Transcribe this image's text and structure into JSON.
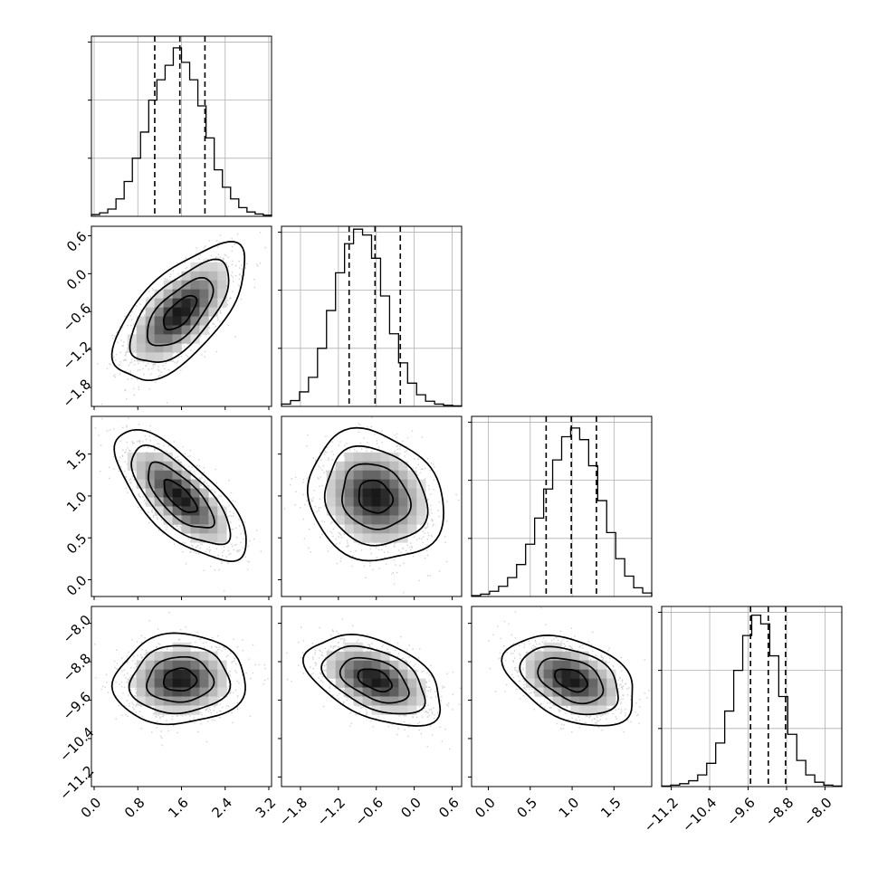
{
  "chart_data": {
    "type": "corner",
    "parameters": [
      {
        "xticks": [
          "0.0",
          "0.8",
          "1.6",
          "2.4",
          "3.2"
        ],
        "tick_values": [
          0.0,
          0.8,
          1.6,
          2.4,
          3.2
        ],
        "range": [
          -0.05,
          3.25
        ],
        "hist_edges": [
          -0.05,
          3.25
        ],
        "hist_counts": [
          6,
          12,
          25,
          60,
          120,
          200,
          290,
          400,
          470,
          520,
          580,
          530,
          470,
          380,
          270,
          160,
          100,
          60,
          30,
          15,
          8,
          4
        ],
        "hist_max": 620,
        "quantiles": [
          1.11,
          1.57,
          2.03
        ]
      },
      {
        "ticks": [
          "-1.8",
          "-1.2",
          "-0.6",
          "0.0",
          "0.6"
        ],
        "tick_values": [
          -1.8,
          -1.2,
          -0.6,
          0.0,
          0.6
        ],
        "range": [
          -2.1,
          0.75
        ],
        "hist_counts": [
          8,
          20,
          50,
          100,
          200,
          330,
          460,
          560,
          610,
          590,
          510,
          380,
          250,
          150,
          80,
          40,
          18,
          8,
          4,
          2
        ],
        "hist_max": 620,
        "quantiles": [
          -1.03,
          -0.62,
          -0.22
        ]
      },
      {
        "ticks": [
          "0.0",
          "0.5",
          "1.0",
          "1.5"
        ],
        "tick_values": [
          0.0,
          0.5,
          1.0,
          1.5
        ],
        "range": [
          -0.2,
          1.95
        ],
        "hist_counts": [
          3,
          8,
          18,
          35,
          65,
          110,
          180,
          270,
          370,
          470,
          550,
          580,
          540,
          450,
          330,
          220,
          130,
          70,
          30,
          12
        ],
        "hist_max": 620,
        "quantiles": [
          0.69,
          0.99,
          1.29
        ]
      },
      {
        "ticks": [
          "-11.2",
          "-10.4",
          "-9.6",
          "-8.8",
          "-8.0"
        ],
        "tick_values": [
          -11.2,
          -10.4,
          -9.6,
          -8.8,
          -8.0
        ],
        "range": [
          -11.4,
          -7.65
        ],
        "hist_counts": [
          2,
          5,
          10,
          20,
          40,
          80,
          150,
          260,
          400,
          520,
          590,
          560,
          450,
          310,
          180,
          90,
          40,
          15,
          5,
          2
        ],
        "hist_max": 620,
        "quantiles": [
          -9.55,
          -9.18,
          -8.82
        ]
      }
    ],
    "pairs": [
      {
        "row": 1,
        "col": 0,
        "mean": [
          1.57,
          -0.62
        ],
        "sd": [
          0.45,
          0.4
        ],
        "corr": 0.65
      },
      {
        "row": 2,
        "col": 0,
        "mean": [
          1.57,
          0.99
        ],
        "sd": [
          0.45,
          0.29
        ],
        "corr": -0.72
      },
      {
        "row": 2,
        "col": 1,
        "mean": [
          -0.62,
          0.99
        ],
        "sd": [
          0.4,
          0.29
        ],
        "corr": -0.15
      },
      {
        "row": 3,
        "col": 0,
        "mean": [
          1.57,
          -9.18
        ],
        "sd": [
          0.45,
          0.35
        ],
        "corr": 0.05
      },
      {
        "row": 3,
        "col": 1,
        "mean": [
          -0.62,
          -9.18
        ],
        "sd": [
          0.4,
          0.35
        ],
        "corr": -0.45
      },
      {
        "row": 3,
        "col": 2,
        "mean": [
          0.99,
          -9.18
        ],
        "sd": [
          0.29,
          0.35
        ],
        "corr": -0.4
      }
    ],
    "contour_levels_sigma": [
      0.5,
      1.0,
      1.5,
      2.0
    ],
    "grid": true,
    "xlabel": "",
    "ylabel": "",
    "title": ""
  }
}
